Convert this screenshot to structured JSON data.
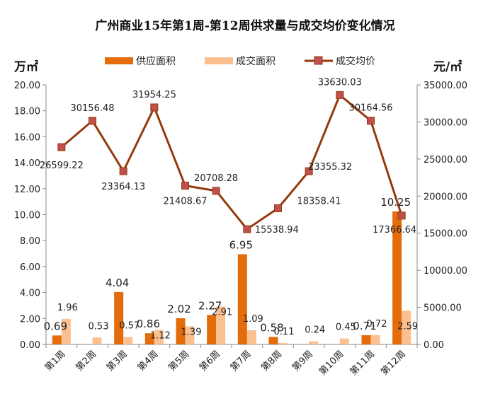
{
  "chart_data": {
    "type": "bar",
    "title": "广州商业15年第1周-第12周供求量与成交均价变化情况",
    "left_unit": "万㎡",
    "right_unit": "元/㎡",
    "categories": [
      "第1周",
      "第2周",
      "第3周",
      "第4周",
      "第5周",
      "第6周",
      "第7周",
      "第8周",
      "第9周",
      "第10周",
      "第11周",
      "第12周"
    ],
    "y_left": {
      "min": 0,
      "max": 20,
      "step": 2,
      "tick_labels": [
        "0.00",
        "2.00",
        "4.00",
        "6.00",
        "8.00",
        "10.00",
        "12.00",
        "14.00",
        "16.00",
        "18.00",
        "20.00"
      ]
    },
    "y_right": {
      "min": 0,
      "max": 35000,
      "step": 5000,
      "tick_labels": [
        "0.00",
        "5000.00",
        "10000.00",
        "15000.00",
        "20000.00",
        "25000.00",
        "30000.00",
        "35000.00"
      ]
    },
    "series": [
      {
        "name": "供应面积",
        "type": "bar",
        "axis": "left",
        "color": "#E46C0A",
        "values": [
          0.69,
          0,
          4.04,
          0.86,
          2.02,
          2.27,
          6.95,
          0.58,
          0,
          0,
          0.71,
          10.25
        ],
        "labels": [
          "0.69",
          "",
          "4.04",
          "0.86",
          "2.02",
          "2.27",
          "6.95",
          "0.58",
          "",
          "",
          "0.71",
          "10.25"
        ]
      },
      {
        "name": "成交面积",
        "type": "bar",
        "axis": "left",
        "color": "#FAC090",
        "values": [
          1.96,
          0.53,
          0.57,
          1.12,
          1.39,
          2.91,
          1.09,
          0.11,
          0.24,
          0.45,
          0.72,
          2.59
        ],
        "labels": [
          "1.96",
          "0.53",
          "0.57",
          "1.12",
          "1.39",
          "2.91",
          "1.09",
          "0.11",
          "0.24",
          "0.45",
          "0.72",
          "2.59"
        ]
      },
      {
        "name": "成交均价",
        "type": "line",
        "axis": "right",
        "color": "#953A0E",
        "marker_color": "#C0504D",
        "values": [
          26599.22,
          30156.48,
          23364.13,
          31954.25,
          21408.67,
          20708.28,
          15538.94,
          18358.41,
          23355.32,
          33630.03,
          30164.56,
          17366.64
        ],
        "labels": [
          "26599.22",
          "30156.48",
          "23364.13",
          "31954.25",
          "21408.67",
          "20708.28",
          "15538.94",
          "18358.41",
          "23355.32",
          "33630.03",
          "30164.56",
          "17366.64"
        ]
      }
    ],
    "legend_position": "top",
    "grid": false
  }
}
